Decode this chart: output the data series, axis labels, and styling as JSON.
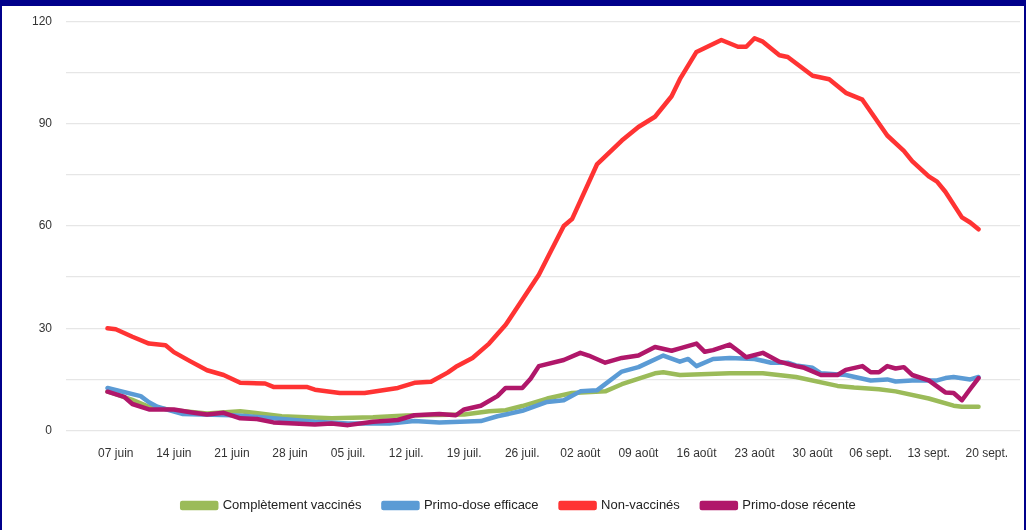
{
  "chart_data": {
    "type": "line",
    "legend": "bottom",
    "grid": "y",
    "marker": "none",
    "line_style": "solid",
    "xlim": [
      "--06-01",
      "--09-24"
    ],
    "xticks": [
      {
        "value": "--06-07",
        "label": "07 juin"
      },
      {
        "value": "--06-14",
        "label": "14 juin"
      },
      {
        "value": "--06-21",
        "label": "21 juin"
      },
      {
        "value": "--06-28",
        "label": "28 juin"
      },
      {
        "value": "--07-05",
        "label": "05 juil."
      },
      {
        "value": "--07-12",
        "label": "12 juil."
      },
      {
        "value": "--07-19",
        "label": "19 juil."
      },
      {
        "value": "--07-26",
        "label": "26 juil."
      },
      {
        "value": "--08-02",
        "label": "02 août"
      },
      {
        "value": "--08-09",
        "label": "09 août"
      },
      {
        "value": "--08-16",
        "label": "16 août"
      },
      {
        "value": "--08-23",
        "label": "23 août"
      },
      {
        "value": "--08-30",
        "label": "30 août"
      },
      {
        "value": "--09-06",
        "label": "06 sept."
      },
      {
        "value": "--09-13",
        "label": "13 sept."
      },
      {
        "value": "--09-20",
        "label": "20 sept."
      }
    ],
    "ylim": [
      0,
      120
    ],
    "yticks": [
      0,
      {
        "value": 15,
        "label": null
      },
      30,
      {
        "value": 45,
        "label": null
      },
      60,
      {
        "value": 75,
        "label": null
      },
      90,
      {
        "value": 105,
        "label": null
      },
      120
    ],
    "series": [
      {
        "name": "Complètement vaccinés",
        "color": "#9bbb59",
        "x": [
          "--06-06",
          "--06-09",
          "--06-11",
          "--06-14",
          "--06-18",
          "--06-22",
          "--06-27",
          "--07-03",
          "--07-08",
          "--07-12",
          "--07-19",
          "--07-22",
          "--07-24",
          "--07-26",
          "--07-29",
          "--08-01",
          "--08-05",
          "--08-07",
          "--08-11",
          "--08-12",
          "--08-14",
          "--08-20",
          "--08-24",
          "--08-28",
          "--09-02",
          "--09-04",
          "--09-07",
          "--09-09",
          "--09-13",
          "--09-16",
          "--09-17",
          "--09-19"
        ],
        "values": [
          11.5,
          9,
          7,
          6,
          5,
          5.7,
          4.2,
          3.6,
          3.9,
          4.4,
          4.7,
          5.7,
          6,
          7.2,
          9.4,
          11,
          11.5,
          13.6,
          16.8,
          17.1,
          16.3,
          16.8,
          16.8,
          15.7,
          13.1,
          12.6,
          12.1,
          11.5,
          9.4,
          7.3,
          7,
          7
        ]
      },
      {
        "name": "Primo-dose efficace",
        "color": "#5b9bd5",
        "x": [
          "--06-06",
          "--06-10",
          "--06-11",
          "--06-12",
          "--06-15",
          "--06-21",
          "--06-23",
          "--06-26",
          "--07-01",
          "--07-05",
          "--07-10",
          "--07-13",
          "--07-16",
          "--07-21",
          "--07-23",
          "--07-24",
          "--07-26",
          "--07-29",
          "--07-31",
          "--08-02",
          "--08-04",
          "--08-07",
          "--08-09",
          "--08-12",
          "--08-14",
          "--08-15",
          "--08-16",
          "--08-18",
          "--08-20",
          "--08-23",
          "--08-25",
          "--08-27",
          "--08-28",
          "--08-30",
          "--08-31",
          "--09-03",
          "--09-06",
          "--09-08",
          "--09-09",
          "--09-11",
          "--09-14",
          "--09-15",
          "--09-16",
          "--09-18",
          "--09-19"
        ],
        "values": [
          12.5,
          10.1,
          8.3,
          7,
          4.9,
          4.5,
          4.2,
          3.6,
          2.6,
          2.1,
          2.1,
          2.8,
          2.4,
          2.8,
          4.2,
          4.7,
          5.8,
          8.4,
          8.9,
          11.5,
          11.8,
          17.3,
          18.6,
          22,
          20.2,
          21,
          18.9,
          21,
          21.3,
          21,
          19.9,
          19.9,
          19.1,
          18.4,
          16.8,
          16.3,
          14.7,
          15,
          14.4,
          14.7,
          14.7,
          15.4,
          15.7,
          15,
          15.7
        ]
      },
      {
        "name": "Non-vaccinés",
        "color": "#ff3333",
        "x": [
          "--06-06",
          "--06-07",
          "--06-09",
          "--06-11",
          "--06-13",
          "--06-14",
          "--06-16",
          "--06-18",
          "--06-20",
          "--06-22",
          "--06-25",
          "--06-26",
          "--06-30",
          "--07-01",
          "--07-04",
          "--07-07",
          "--07-11",
          "--07-13",
          "--07-15",
          "--07-17",
          "--07-18",
          "--07-20",
          "--07-22",
          "--07-24",
          "--07-28",
          "--07-31",
          "--08-01",
          "--08-04",
          "--08-07",
          "--08-09",
          "--08-11",
          "--08-13",
          "--08-14",
          "--08-16",
          "--08-19",
          "--08-21",
          "--08-22",
          "--08-23",
          "--08-24",
          "--08-26",
          "--08-27",
          "--08-30",
          "--09-01",
          "--09-02",
          "--09-03",
          "--09-05",
          "--09-08",
          "--09-10",
          "--09-11",
          "--09-13",
          "--09-14",
          "--09-15",
          "--09-17",
          "--09-18",
          "--09-19"
        ],
        "values": [
          30,
          29.7,
          27.5,
          25.5,
          25,
          23,
          20.3,
          17.7,
          16.3,
          14,
          13.8,
          12.8,
          12.8,
          12,
          11,
          11,
          12.5,
          14,
          14.3,
          17,
          18.7,
          21.3,
          25.5,
          31,
          45.7,
          60,
          62,
          78,
          85,
          89,
          92,
          98,
          103,
          111,
          114.5,
          112.5,
          112.5,
          115,
          114,
          110,
          109.5,
          104,
          103,
          101,
          99,
          97,
          86.5,
          82,
          79,
          74.5,
          73,
          70,
          62.5,
          61,
          59
        ]
      },
      {
        "name": "Primo-dose récente",
        "color": "#b0176a",
        "x": [
          "--06-06",
          "--06-08",
          "--06-09",
          "--06-11",
          "--06-14",
          "--06-16",
          "--06-18",
          "--06-20",
          "--06-22",
          "--06-24",
          "--06-26",
          "--07-01",
          "--07-03",
          "--07-05",
          "--07-08",
          "--07-11",
          "--07-13",
          "--07-16",
          "--07-18",
          "--07-19",
          "--07-21",
          "--07-23",
          "--07-24",
          "--07-26",
          "--07-27",
          "--07-28",
          "--07-31",
          "--08-02",
          "--08-03",
          "--08-05",
          "--08-07",
          "--08-09",
          "--08-11",
          "--08-13",
          "--08-14",
          "--08-16",
          "--08-17",
          "--08-18",
          "--08-20",
          "--08-21",
          "--08-22",
          "--08-24",
          "--08-25",
          "--08-26",
          "--08-28",
          "--08-29",
          "--08-31",
          "--09-02",
          "--09-03",
          "--09-05",
          "--09-06",
          "--09-07",
          "--09-08",
          "--09-09",
          "--09-10",
          "--09-11",
          "--09-13",
          "--09-15",
          "--09-16",
          "--09-17",
          "--09-18",
          "--09-19"
        ],
        "values": [
          11.4,
          9.9,
          7.8,
          6.2,
          6.2,
          5.4,
          4.7,
          5.2,
          3.6,
          3.4,
          2.4,
          1.8,
          2.1,
          1.6,
          2.6,
          3.1,
          4.5,
          4.9,
          4.5,
          6.2,
          7.3,
          10.1,
          12.5,
          12.5,
          15.2,
          18.9,
          20.7,
          22.8,
          22,
          19.9,
          21.3,
          22,
          24.5,
          23.4,
          24.1,
          25.5,
          23.1,
          23.6,
          25.2,
          23.4,
          21.5,
          22.8,
          21.5,
          20.2,
          18.9,
          18.4,
          16.3,
          16.3,
          17.8,
          18.9,
          17.1,
          17.1,
          18.9,
          18.2,
          18.6,
          16.3,
          14.7,
          11.2,
          11,
          8.9,
          12.2,
          15.4
        ]
      }
    ]
  }
}
